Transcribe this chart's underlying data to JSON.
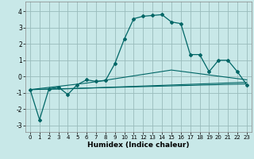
{
  "title": "",
  "xlabel": "Humidex (Indice chaleur)",
  "bg_color": "#c8e8e8",
  "grid_color": "#99bbbb",
  "line_color": "#006666",
  "xlim": [
    -0.5,
    23.5
  ],
  "ylim": [
    -3.4,
    4.6
  ],
  "xticks": [
    0,
    1,
    2,
    3,
    4,
    5,
    6,
    7,
    8,
    9,
    10,
    11,
    12,
    13,
    14,
    15,
    16,
    17,
    18,
    19,
    20,
    21,
    22,
    23
  ],
  "yticks": [
    -3,
    -2,
    -1,
    0,
    1,
    2,
    3,
    4
  ],
  "series_main": [
    [
      0,
      -0.8
    ],
    [
      1,
      -2.65
    ],
    [
      2,
      -0.75
    ],
    [
      3,
      -0.65
    ],
    [
      4,
      -1.1
    ],
    [
      5,
      -0.5
    ],
    [
      6,
      -0.2
    ],
    [
      7,
      -0.3
    ],
    [
      8,
      -0.25
    ],
    [
      9,
      0.8
    ],
    [
      10,
      2.3
    ],
    [
      11,
      3.55
    ],
    [
      12,
      3.7
    ],
    [
      13,
      3.75
    ],
    [
      14,
      3.8
    ],
    [
      15,
      3.35
    ],
    [
      16,
      3.25
    ],
    [
      17,
      1.35
    ],
    [
      18,
      1.35
    ],
    [
      19,
      0.3
    ],
    [
      20,
      1.0
    ],
    [
      21,
      1.0
    ],
    [
      22,
      0.3
    ],
    [
      23,
      -0.5
    ]
  ],
  "series_line1": [
    [
      0,
      -0.8
    ],
    [
      23,
      -0.45
    ]
  ],
  "series_line2": [
    [
      0,
      -0.8
    ],
    [
      4,
      -0.75
    ],
    [
      23,
      -0.35
    ]
  ],
  "series_line3": [
    [
      0,
      -0.8
    ],
    [
      6,
      -0.4
    ],
    [
      15,
      0.4
    ],
    [
      23,
      -0.2
    ]
  ]
}
